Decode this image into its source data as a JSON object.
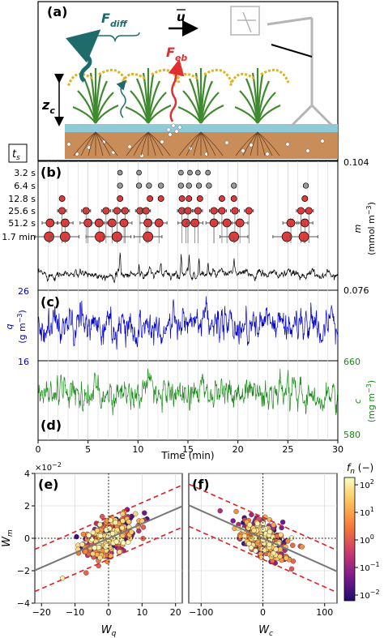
{
  "panels": {
    "a": {
      "label": "(a)",
      "flux_diff": "F",
      "flux_diff_sub": "diff",
      "flux_eb": "F",
      "flux_eb_sub": "eb",
      "wind": "u",
      "canopy_height": "z",
      "canopy_height_sub": "c",
      "colors": {
        "sky": "#ffffff",
        "water": "#8ecad8",
        "soil": "#c98d5a",
        "plant": "#3f8a2f",
        "grain": "#e0b21c",
        "diff_arrow": "#1f6b6b",
        "eb_arrow": "#e03030",
        "tower": "#b5b5b5"
      }
    },
    "b": {
      "label": "(b)",
      "ts_label": "t",
      "ts_sub": "s",
      "scales": [
        "3.2 s",
        "6.4 s",
        "12.8 s",
        "25.6 s",
        "51.2 s",
        "1.7 min"
      ],
      "ylabel": "m",
      "yunit": "(mmol m",
      "yunit_exp": "−3",
      "yunit_end": ")",
      "ytick_top": "0.104",
      "ytick_bottom": "0.076",
      "color": "#000000"
    },
    "c": {
      "label": "(c)",
      "ylabel": "q",
      "yunit": "(g m",
      "yunit_exp": "−3",
      "yunit_end": ")",
      "ytick_top": "26",
      "ytick_bottom": "16",
      "color": "#0000cc"
    },
    "d": {
      "label": "(d)",
      "ylabel": "c",
      "yunit": "(mg m",
      "yunit_exp": "−3",
      "yunit_end": ")",
      "ytick_top": "660",
      "ytick_bottom": "580",
      "color": "#1a8a1a"
    },
    "time_axis": {
      "xlabel": "Time (min)",
      "ticks": [
        "0",
        "5",
        "10",
        "15",
        "20",
        "25",
        "30"
      ]
    },
    "e": {
      "label": "(e)",
      "xlabel": "W",
      "xlabel_sub": "q",
      "ylabel": "W",
      "ylabel_sub": "m",
      "yscale": "×10",
      "yscale_exp": "−2",
      "xticks": [
        "−20",
        "−10",
        "0",
        "10",
        "20"
      ],
      "yticks": [
        "4",
        "2",
        "0",
        "−2",
        "−4"
      ]
    },
    "f": {
      "label": "(f)",
      "xlabel": "W",
      "xlabel_sub": "c",
      "xticks": [
        "−100",
        "0",
        "100"
      ]
    },
    "colorbar": {
      "label": "f",
      "label_sub": "n",
      "unit": " (−)",
      "ticks": [
        "10",
        "10",
        "10",
        "10",
        "10"
      ],
      "tick_exps": [
        "2",
        "1",
        "0",
        "−1",
        "−2"
      ],
      "colors": [
        "#fcf6a4",
        "#fbb14b",
        "#f07238",
        "#c13d6b",
        "#7e1a8d",
        "#2c0a78"
      ]
    }
  },
  "chart_data": [
    {
      "type": "line",
      "panel": "b",
      "xlabel": "Time (min)",
      "ylabel": "m (mmol m−3)",
      "xlim": [
        0,
        30
      ],
      "ylim": [
        0.076,
        0.104
      ],
      "series": [
        {
          "name": "m",
          "values": "noisy time series around 0.086"
        }
      ],
      "event_scales": [
        "3.2 s",
        "6.4 s",
        "12.8 s",
        "25.6 s",
        "51.2 s",
        "1.7 min"
      ],
      "events": {
        "3.2 s": [
          8.2,
          10.1,
          14.3,
          15.2,
          16.0,
          17.0
        ],
        "6.4 s": [
          8.2,
          10.1,
          11.1,
          12.3,
          14.3,
          15.1,
          16.1,
          17.1,
          19.6,
          26.8
        ],
        "12.8 s": [
          2.4,
          8.2,
          11.2,
          12.3,
          14.4,
          15.1,
          16.2,
          18.4,
          19.6,
          26.7
        ],
        "25.6 s": [
          2.4,
          4.8,
          6.8,
          7.9,
          8.7,
          10.2,
          10.8,
          14.4,
          15.0,
          16.0,
          17.6,
          18.4,
          19.7,
          21.1,
          26.3,
          27.1
        ],
        "51.2 s": [
          1.2,
          2.7,
          5.0,
          6.1,
          7.4,
          8.6,
          11.0,
          12.1,
          14.8,
          15.7,
          17.6,
          18.9,
          20.2,
          25.3,
          26.7
        ],
        "1.7 min": [
          1.1,
          2.7,
          6.2,
          7.9,
          11.0,
          19.6,
          24.9,
          26.6
        ]
      }
    },
    {
      "type": "line",
      "panel": "c",
      "xlabel": "Time (min)",
      "ylabel": "q (g m−3)",
      "xlim": [
        0,
        30
      ],
      "ylim": [
        16,
        26
      ],
      "series": [
        {
          "name": "q",
          "values": "noisy time series around 21"
        }
      ]
    },
    {
      "type": "line",
      "panel": "d",
      "xlabel": "Time (min)",
      "ylabel": "c (mg m−3)",
      "xlim": [
        0,
        30
      ],
      "ylim": [
        580,
        660
      ],
      "series": [
        {
          "name": "c",
          "values": "noisy time series around 625"
        }
      ]
    },
    {
      "type": "scatter",
      "panel": "e",
      "xlabel": "Wq",
      "ylabel": "Wm (×10−2)",
      "xlim": [
        -22,
        22
      ],
      "ylim": [
        -4,
        4
      ],
      "fit_slope": 0.09,
      "bounds_offset": 1.3,
      "colorscale": "fn (log, 1e-2 to 1e2)"
    },
    {
      "type": "scatter",
      "panel": "f",
      "xlabel": "Wc",
      "ylabel": "Wm (×10−2)",
      "xlim": [
        -120,
        120
      ],
      "ylim": [
        -4,
        4
      ],
      "fit_slope": -0.017,
      "bounds_offset": 1.3,
      "colorscale": "fn (log, 1e-2 to 1e2)"
    }
  ]
}
